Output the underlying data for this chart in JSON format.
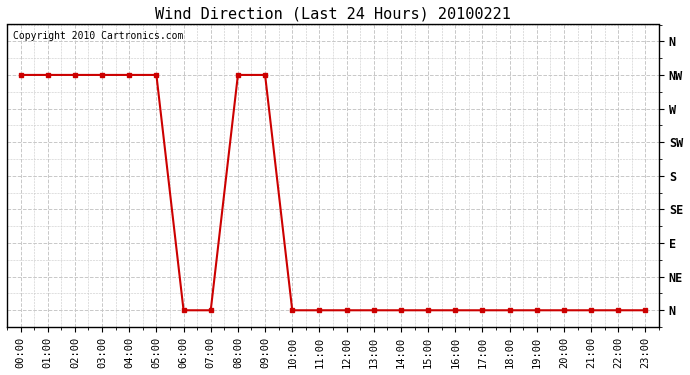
{
  "title": "Wind Direction (Last 24 Hours) 20100221",
  "copyright_text": "Copyright 2010 Cartronics.com",
  "background_color": "#ffffff",
  "plot_bg_color": "#ffffff",
  "line_color": "#cc0000",
  "marker": "s",
  "marker_size": 3,
  "x_labels": [
    "00:00",
    "01:00",
    "02:00",
    "03:00",
    "04:00",
    "05:00",
    "06:00",
    "07:00",
    "08:00",
    "09:00",
    "10:00",
    "11:00",
    "12:00",
    "13:00",
    "14:00",
    "15:00",
    "16:00",
    "17:00",
    "18:00",
    "19:00",
    "20:00",
    "21:00",
    "22:00",
    "23:00"
  ],
  "y_labels": [
    "N",
    "NE",
    "E",
    "SE",
    "S",
    "SW",
    "W",
    "NW",
    "N"
  ],
  "y_values": [
    0,
    1,
    2,
    3,
    4,
    5,
    6,
    7,
    8
  ],
  "wind_data": [
    7,
    7,
    7,
    7,
    7,
    7,
    0,
    0,
    7,
    7,
    0,
    0,
    0,
    0,
    0,
    0,
    0,
    0,
    0,
    0,
    0,
    0,
    0,
    0
  ],
  "grid_color": "#c8c8c8",
  "title_fontsize": 11,
  "tick_fontsize": 7.5,
  "copyright_fontsize": 7
}
